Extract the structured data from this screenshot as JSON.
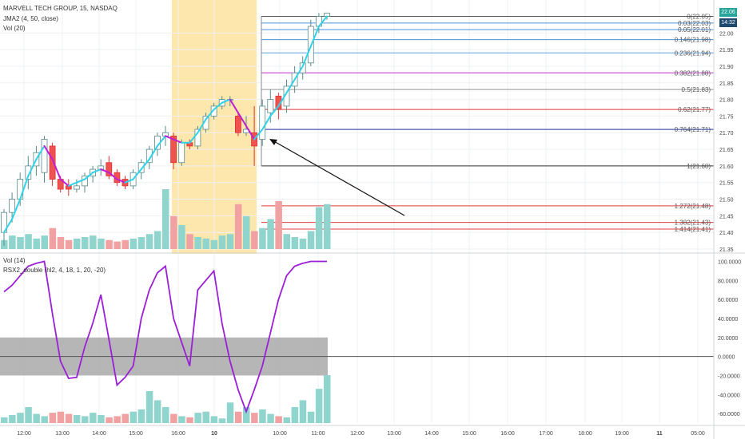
{
  "header": {
    "symbol_title": "MARVELL TECH GROUP, 15, NASDAQ",
    "study_jma": "JMA2 (4, 50, close)",
    "study_vol": "Vol (20)",
    "lower_vol": "Vol (14)",
    "lower_rsx": "RSX2_double (hl2, 4, 18, 1, 20, -20)"
  },
  "price_badges": {
    "last": "22.06",
    "time": "14:32"
  },
  "colors": {
    "up_candle": "#ffffff",
    "down_candle": "#ef5350",
    "jma_up": "#2fd3e8",
    "jma_down": "#c01fd6",
    "vol_up": "#8fd4cd",
    "vol_down": "#f1a1a1",
    "session_highlight": "#fde7ac",
    "rsx_line": "#9b1fd6",
    "rsx_band": "#a9a9a9"
  },
  "chart_data": [
    {
      "type": "candlestick",
      "title": "MARVELL TECH GROUP, 15, NASDAQ",
      "y_ticks": [
        "22.00",
        "21.95",
        "21.90",
        "21.85",
        "21.80",
        "21.75",
        "21.70",
        "21.65",
        "21.60",
        "21.55",
        "21.50",
        "21.45",
        "21.40",
        "21.35"
      ],
      "ylim": [
        21.35,
        22.08
      ],
      "x_ticks": [
        "12:00",
        "13:00",
        "14:00",
        "15:00",
        "16:00",
        "10",
        "10:00",
        "11:00",
        "12:00",
        "13:00",
        "14:00",
        "15:00",
        "16:00",
        "17:00",
        "18:00",
        "19:00",
        "11",
        "05:00"
      ],
      "fib_levels": [
        {
          "label": "0(22.05)",
          "value": 22.05,
          "color": "#555555"
        },
        {
          "label": "0.03(22.03)",
          "value": 22.03,
          "color": "#4a90d9"
        },
        {
          "label": "0.05(22.01)",
          "value": 22.01,
          "color": "#4a90d9"
        },
        {
          "label": "0.146(21.98)",
          "value": 21.98,
          "color": "#4a90d9"
        },
        {
          "label": "0.236(21.94)",
          "value": 21.94,
          "color": "#5aa0e0"
        },
        {
          "label": "0.382(21.88)",
          "value": 21.88,
          "color": "#c72fcf"
        },
        {
          "label": "0.5(21.83)",
          "value": 21.83,
          "color": "#999999"
        },
        {
          "label": "0.62(21.77)",
          "value": 21.77,
          "color": "#e03b3b"
        },
        {
          "label": "0.764(21.71)",
          "value": 21.71,
          "color": "#2233aa"
        },
        {
          "label": "1(21.60)",
          "value": 21.6,
          "color": "#333333"
        },
        {
          "label": "1.272(21.48)",
          "value": 21.48,
          "color": "#e03b3b"
        },
        {
          "label": "1.382(21.43)",
          "value": 21.43,
          "color": "#e03b3b"
        },
        {
          "label": "1.414(21.41)",
          "value": 21.41,
          "color": "#e03b3b"
        }
      ],
      "candles": [
        {
          "o": 21.4,
          "h": 21.47,
          "l": 21.36,
          "c": 21.46
        },
        {
          "o": 21.46,
          "h": 21.52,
          "l": 21.43,
          "c": 21.5
        },
        {
          "o": 21.5,
          "h": 21.58,
          "l": 21.48,
          "c": 21.56
        },
        {
          "o": 21.56,
          "h": 21.63,
          "l": 21.53,
          "c": 21.6
        },
        {
          "o": 21.6,
          "h": 21.66,
          "l": 21.57,
          "c": 21.64
        },
        {
          "o": 21.58,
          "h": 21.69,
          "l": 21.55,
          "c": 21.68
        },
        {
          "o": 21.66,
          "h": 21.67,
          "l": 21.54,
          "c": 21.56
        },
        {
          "o": 21.56,
          "h": 21.57,
          "l": 21.52,
          "c": 21.53
        },
        {
          "o": 21.54,
          "h": 21.56,
          "l": 21.51,
          "c": 21.53
        },
        {
          "o": 21.53,
          "h": 21.56,
          "l": 21.52,
          "c": 21.54
        },
        {
          "o": 21.54,
          "h": 21.58,
          "l": 21.52,
          "c": 21.57
        },
        {
          "o": 21.57,
          "h": 21.6,
          "l": 21.55,
          "c": 21.59
        },
        {
          "o": 21.59,
          "h": 21.62,
          "l": 21.57,
          "c": 21.6
        },
        {
          "o": 21.61,
          "h": 21.63,
          "l": 21.56,
          "c": 21.57
        },
        {
          "o": 21.58,
          "h": 21.59,
          "l": 21.54,
          "c": 21.55
        },
        {
          "o": 21.56,
          "h": 21.57,
          "l": 21.53,
          "c": 21.54
        },
        {
          "o": 21.54,
          "h": 21.59,
          "l": 21.53,
          "c": 21.58
        },
        {
          "o": 21.58,
          "h": 21.62,
          "l": 21.56,
          "c": 21.61
        },
        {
          "o": 21.61,
          "h": 21.66,
          "l": 21.59,
          "c": 21.65
        },
        {
          "o": 21.65,
          "h": 21.7,
          "l": 21.63,
          "c": 21.69
        },
        {
          "o": 21.69,
          "h": 21.72,
          "l": 21.66,
          "c": 21.7
        },
        {
          "o": 21.69,
          "h": 21.7,
          "l": 21.59,
          "c": 21.61
        },
        {
          "o": 21.61,
          "h": 21.68,
          "l": 21.6,
          "c": 21.67
        },
        {
          "o": 21.67,
          "h": 21.68,
          "l": 21.65,
          "c": 21.66
        },
        {
          "o": 21.66,
          "h": 21.72,
          "l": 21.65,
          "c": 21.71
        },
        {
          "o": 21.71,
          "h": 21.76,
          "l": 21.7,
          "c": 21.75
        },
        {
          "o": 21.75,
          "h": 21.79,
          "l": 21.74,
          "c": 21.78
        },
        {
          "o": 21.78,
          "h": 21.81,
          "l": 21.77,
          "c": 21.8
        },
        {
          "o": 21.8,
          "h": 21.81,
          "l": 21.78,
          "c": 21.8
        },
        {
          "o": 21.75,
          "h": 21.76,
          "l": 21.69,
          "c": 21.7
        },
        {
          "o": 21.7,
          "h": 21.75,
          "l": 21.69,
          "c": 21.71
        },
        {
          "o": 21.7,
          "h": 21.78,
          "l": 21.6,
          "c": 21.66
        },
        {
          "o": 21.68,
          "h": 21.8,
          "l": 21.66,
          "c": 21.78
        },
        {
          "o": 21.76,
          "h": 21.83,
          "l": 21.73,
          "c": 21.8
        },
        {
          "o": 21.81,
          "h": 21.82,
          "l": 21.74,
          "c": 21.77
        },
        {
          "o": 21.78,
          "h": 21.86,
          "l": 21.76,
          "c": 21.84
        },
        {
          "o": 21.84,
          "h": 21.9,
          "l": 21.82,
          "c": 21.88
        },
        {
          "o": 21.88,
          "h": 21.93,
          "l": 21.86,
          "c": 21.91
        },
        {
          "o": 21.91,
          "h": 22.04,
          "l": 21.9,
          "c": 22.02
        },
        {
          "o": 22.02,
          "h": 22.06,
          "l": 22.0,
          "c": 22.05
        },
        {
          "o": 22.05,
          "h": 22.06,
          "l": 22.04,
          "c": 22.06
        }
      ],
      "jma": [
        21.4,
        21.44,
        21.5,
        21.57,
        21.62,
        21.66,
        21.62,
        21.56,
        21.54,
        21.55,
        21.56,
        21.58,
        21.59,
        21.58,
        21.56,
        21.55,
        21.56,
        21.59,
        21.62,
        21.66,
        21.69,
        21.68,
        21.67,
        21.67,
        21.7,
        21.74,
        21.77,
        21.79,
        21.8,
        21.76,
        21.72,
        21.68,
        21.71,
        21.75,
        21.78,
        21.82,
        21.86,
        21.9,
        21.96,
        22.02,
        22.05
      ],
      "volume": [
        6,
        9,
        8,
        10,
        7,
        9,
        14,
        8,
        6,
        7,
        8,
        9,
        7,
        6,
        5,
        6,
        7,
        8,
        10,
        12,
        40,
        22,
        16,
        10,
        8,
        7,
        6,
        9,
        10,
        30,
        22,
        12,
        14,
        20,
        32,
        10,
        8,
        7,
        12,
        28,
        30
      ]
    },
    {
      "type": "line",
      "series": [
        {
          "name": "RSX2_double (hl2, 4, 18, 1, 20, -20)",
          "values": [
            68,
            75,
            85,
            95,
            98,
            100,
            45,
            -5,
            -23,
            -22,
            10,
            35,
            65,
            18,
            -30,
            -22,
            -10,
            40,
            70,
            88,
            95,
            40,
            15,
            -10,
            70,
            80,
            90,
            35,
            -5,
            -35,
            -58,
            -35,
            -10,
            25,
            60,
            85,
            95,
            98,
            100,
            100,
            100
          ]
        }
      ],
      "y_ticks": [
        "100.0000",
        "80.0000",
        "60.0000",
        "40.0000",
        "20.0000",
        "0.0000",
        "-20.0000",
        "-40.0000",
        "-60.0000"
      ],
      "ylim": [
        -70,
        108
      ],
      "band": [
        -20,
        20
      ],
      "volume": [
        5,
        7,
        9,
        14,
        8,
        6,
        9,
        10,
        8,
        7,
        6,
        9,
        7,
        5,
        6,
        8,
        10,
        12,
        28,
        20,
        14,
        8,
        6,
        5,
        9,
        10,
        6,
        4,
        18,
        10,
        14,
        9,
        12,
        8,
        6,
        5,
        14,
        20,
        10,
        30,
        42
      ]
    }
  ]
}
